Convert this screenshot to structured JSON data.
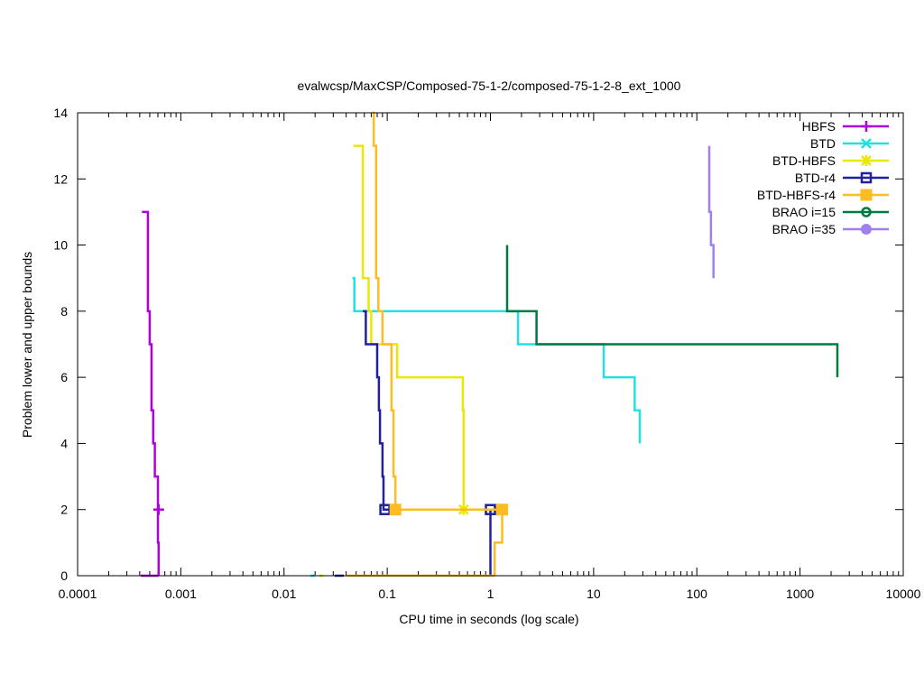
{
  "chart_data": {
    "type": "line",
    "title": "evalwcsp/MaxCSP/Composed-75-1-2/composed-75-1-2-8_ext_1000",
    "xlabel": "CPU time in seconds (log scale)",
    "ylabel": "Problem lower and upper bounds",
    "xscale": "log",
    "xlim": [
      0.0001,
      10000
    ],
    "ylim": [
      0,
      14
    ],
    "x_ticks": [
      0.0001,
      0.001,
      0.01,
      0.1,
      1,
      10,
      100,
      1000,
      10000
    ],
    "x_tick_labels": [
      "0.0001",
      "0.001",
      "0.01",
      "0.1",
      "1",
      "10",
      "100",
      "1000",
      "10000"
    ],
    "y_ticks": [
      0,
      2,
      4,
      6,
      8,
      10,
      12,
      14
    ],
    "y_tick_labels": [
      "0",
      "2",
      "4",
      "6",
      "8",
      "10",
      "12",
      "14"
    ],
    "grid": false,
    "legend_position": "top-right",
    "series": [
      {
        "name": "HBFS",
        "color": "#b000e0",
        "marker": "plus",
        "marker_points": [
          [
            0.00061,
            2
          ]
        ],
        "lines": [
          [
            [
              0.00042,
              11
            ],
            [
              0.00048,
              11
            ],
            [
              0.00048,
              8
            ],
            [
              0.0005,
              8
            ],
            [
              0.0005,
              7
            ],
            [
              0.00052,
              7
            ],
            [
              0.00052,
              5
            ],
            [
              0.00054,
              5
            ],
            [
              0.00054,
              4
            ],
            [
              0.00056,
              4
            ],
            [
              0.00056,
              3
            ],
            [
              0.0006,
              3
            ],
            [
              0.0006,
              2
            ],
            [
              0.0006,
              1
            ],
            [
              0.00061,
              1
            ],
            [
              0.00061,
              0
            ]
          ],
          [
            [
              0.00041,
              0
            ],
            [
              0.00061,
              0
            ]
          ]
        ]
      },
      {
        "name": "BTD",
        "color": "#22e0e0",
        "marker": "x",
        "marker_points": [],
        "lines": [
          [
            [
              0.046,
              9
            ],
            [
              0.048,
              9
            ],
            [
              0.048,
              8
            ],
            [
              1.85,
              8
            ],
            [
              1.85,
              7
            ],
            [
              12.5,
              7
            ],
            [
              12.5,
              6
            ],
            [
              25,
              6
            ],
            [
              25,
              5
            ],
            [
              28,
              5
            ],
            [
              28,
              4
            ]
          ],
          [
            [
              0.018,
              0
            ],
            [
              0.02,
              0
            ]
          ]
        ]
      },
      {
        "name": "BTD-HBFS",
        "color": "#e8e800",
        "marker": "star",
        "marker_points": [
          [
            0.55,
            2
          ]
        ],
        "lines": [
          [
            [
              0.047,
              13
            ],
            [
              0.058,
              13
            ],
            [
              0.058,
              9
            ],
            [
              0.066,
              9
            ],
            [
              0.066,
              8
            ],
            [
              0.07,
              8
            ],
            [
              0.07,
              7
            ],
            [
              0.1,
              7
            ],
            [
              0.1,
              7
            ],
            [
              0.125,
              7
            ],
            [
              0.125,
              6
            ],
            [
              0.54,
              6
            ],
            [
              0.54,
              5
            ],
            [
              0.55,
              5
            ],
            [
              0.55,
              2
            ]
          ],
          [
            [
              0.022,
              0
            ],
            [
              0.024,
              0
            ]
          ]
        ]
      },
      {
        "name": "BTD-r4",
        "color": "#2020a0",
        "marker": "open-square",
        "marker_points": [
          [
            0.095,
            2
          ],
          [
            1.0,
            2
          ]
        ],
        "lines": [
          [
            [
              0.058,
              8
            ],
            [
              0.062,
              8
            ],
            [
              0.062,
              7
            ],
            [
              0.08,
              7
            ],
            [
              0.08,
              6
            ],
            [
              0.083,
              6
            ],
            [
              0.083,
              5
            ],
            [
              0.085,
              5
            ],
            [
              0.085,
              4
            ],
            [
              0.09,
              4
            ],
            [
              0.09,
              3
            ],
            [
              0.092,
              3
            ],
            [
              0.092,
              2
            ],
            [
              1.0,
              2
            ],
            [
              1.0,
              1
            ],
            [
              1.0,
              0
            ]
          ],
          [
            [
              0.031,
              0
            ],
            [
              0.038,
              0
            ]
          ]
        ]
      },
      {
        "name": "BTD-HBFS-r4",
        "color": "#ffbb22",
        "marker": "filled-square",
        "marker_points": [
          [
            0.12,
            2
          ],
          [
            1.3,
            2
          ]
        ],
        "lines": [
          [
            [
              0.072,
              14
            ],
            [
              0.074,
              14
            ],
            [
              0.074,
              13
            ],
            [
              0.078,
              13
            ],
            [
              0.078,
              9
            ],
            [
              0.082,
              9
            ],
            [
              0.082,
              8
            ],
            [
              0.09,
              8
            ],
            [
              0.09,
              7
            ],
            [
              0.11,
              7
            ],
            [
              0.11,
              5
            ],
            [
              0.115,
              5
            ],
            [
              0.115,
              3
            ],
            [
              0.12,
              3
            ],
            [
              0.12,
              2
            ],
            [
              1.3,
              2
            ],
            [
              1.3,
              1
            ],
            [
              1.1,
              1
            ],
            [
              1.1,
              0
            ]
          ],
          [
            [
              0.04,
              0
            ],
            [
              1.1,
              0
            ]
          ]
        ]
      },
      {
        "name": "BRAO i=15",
        "color": "#007a40",
        "marker": "open-circle",
        "marker_points": [],
        "lines": [
          [
            [
              1.45,
              10
            ],
            [
              1.45,
              8
            ],
            [
              2.8,
              8
            ],
            [
              2.8,
              7
            ],
            [
              2300,
              7
            ],
            [
              2300,
              6
            ]
          ]
        ]
      },
      {
        "name": "BRAO i=35",
        "color": "#a080f0",
        "marker": "filled-circle",
        "marker_points": [],
        "lines": [
          [
            [
              132,
              13
            ],
            [
              132,
              11
            ],
            [
              137,
              11
            ],
            [
              137,
              10
            ],
            [
              145,
              10
            ],
            [
              145,
              9
            ]
          ]
        ]
      }
    ]
  }
}
